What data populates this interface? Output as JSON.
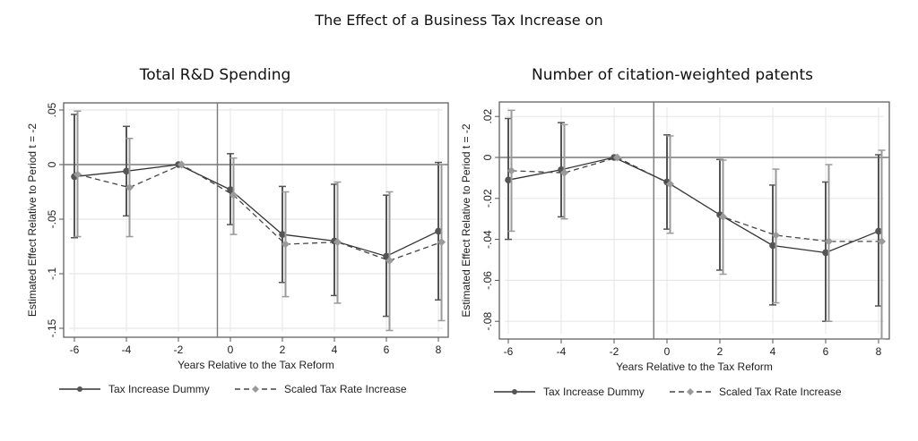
{
  "title": "The Effect of a Business Tax Increase on",
  "colors": {
    "dummy": "#555555",
    "scaled": "#9a9a9a",
    "scaled_line": "#444444",
    "grid": "#e8e8e8",
    "frame": "#555555",
    "refline": "#7a7a7a"
  },
  "chart_data": [
    {
      "type": "line",
      "title": "Total R&D Spending",
      "xlabel": "Years Relative to the Tax Reform",
      "ylabel": "Estimated Effect Relative to Period t = -2",
      "x": [
        -6,
        -4,
        -2,
        0,
        2,
        4,
        6,
        8
      ],
      "xticks": [
        "-6",
        "-4",
        "-2",
        "0",
        "2",
        "4",
        "6",
        "8"
      ],
      "yticks": [
        0.05,
        0,
        -0.05,
        -0.1,
        -0.15
      ],
      "ytick_labels": [
        ".05",
        "0",
        "-.05",
        "-.1",
        "-.15"
      ],
      "ylim": [
        -0.15,
        0.05
      ],
      "reference_lines": {
        "y": 0,
        "x": -0.5
      },
      "grid": true,
      "legend_position": "bottom",
      "series": [
        {
          "name": "Tax Increase Dummy",
          "style": "solid-circle",
          "values": [
            -0.011,
            -0.006,
            0.0,
            -0.023,
            -0.064,
            -0.07,
            -0.084,
            -0.061
          ],
          "ci_low": [
            -0.067,
            -0.047,
            0.0,
            -0.055,
            -0.108,
            -0.12,
            -0.139,
            -0.124
          ],
          "ci_high": [
            0.046,
            0.035,
            0.0,
            0.01,
            -0.02,
            -0.018,
            -0.028,
            0.002
          ]
        },
        {
          "name": "Scaled Tax Rate Increase",
          "style": "dashed-diamond",
          "values": [
            -0.009,
            -0.021,
            0.0,
            -0.028,
            -0.073,
            -0.071,
            -0.088,
            -0.071
          ],
          "ci_low": [
            -0.066,
            -0.066,
            0.0,
            -0.064,
            -0.121,
            -0.127,
            -0.152,
            -0.143
          ],
          "ci_high": [
            0.049,
            0.024,
            0.0,
            0.006,
            -0.025,
            -0.016,
            -0.025,
            0.0
          ]
        }
      ]
    },
    {
      "type": "line",
      "title": "Number of citation-weighted patents",
      "xlabel": "Years Relative to the Tax Reform",
      "ylabel": "Estimated Effect Relative to Period t = -2",
      "x": [
        -6,
        -4,
        -2,
        0,
        2,
        4,
        6,
        8
      ],
      "xticks": [
        "-6",
        "-4",
        "-2",
        "0",
        "2",
        "4",
        "6",
        "8"
      ],
      "yticks": [
        0.02,
        0,
        -0.02,
        -0.04,
        -0.06,
        -0.08
      ],
      "ytick_labels": [
        ".02",
        "0",
        "-.02",
        "-.04",
        "-.06",
        "-.08"
      ],
      "ylim": [
        -0.08,
        0.02
      ],
      "reference_lines": {
        "y": 0,
        "x": -0.5
      },
      "grid": true,
      "legend_position": "bottom",
      "series": [
        {
          "name": "Tax Increase Dummy",
          "style": "solid-circle",
          "values": [
            -0.011,
            -0.006,
            0.0,
            -0.012,
            -0.028,
            -0.043,
            -0.0465,
            -0.036
          ],
          "ci_low": [
            -0.04,
            -0.029,
            0.0,
            -0.035,
            -0.055,
            -0.072,
            -0.08,
            -0.0725
          ],
          "ci_high": [
            0.019,
            0.017,
            0.0,
            0.011,
            -0.001,
            -0.0135,
            -0.012,
            0.0013
          ]
        },
        {
          "name": "Scaled Tax Rate Increase",
          "style": "dashed-diamond",
          "values": [
            -0.0065,
            -0.0075,
            0.0,
            -0.013,
            -0.029,
            -0.038,
            -0.041,
            -0.041
          ],
          "ci_low": [
            -0.036,
            -0.03,
            0.0,
            -0.037,
            -0.057,
            -0.071,
            -0.08,
            -0.0885
          ],
          "ci_high": [
            0.023,
            0.016,
            0.0,
            0.0105,
            -0.0013,
            -0.0057,
            -0.0035,
            0.0035
          ]
        }
      ]
    }
  ]
}
